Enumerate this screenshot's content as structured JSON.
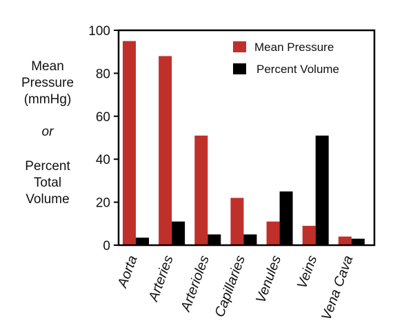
{
  "chart_data": {
    "type": "bar",
    "categories": [
      "Aorta",
      "Arteries",
      "Arterioles",
      "Capillaries",
      "Venules",
      "Veins",
      "Vena Cava"
    ],
    "series": [
      {
        "name": "Mean Pressure",
        "color": "#c0302a",
        "values": [
          95,
          88,
          51,
          22,
          11,
          9,
          4
        ]
      },
      {
        "name": "Percent Volume",
        "color": "#000000",
        "values": [
          3.5,
          11,
          5,
          5,
          25,
          51,
          3
        ]
      }
    ],
    "ylabel_lines": [
      "Mean",
      "Pressure",
      "(mmHg)",
      "or",
      "Percent",
      "Total",
      "Volume"
    ],
    "ylim": [
      0,
      100
    ],
    "yticks": [
      0,
      20,
      40,
      60,
      80,
      100
    ],
    "legend_position": "top-right",
    "grid": false
  }
}
